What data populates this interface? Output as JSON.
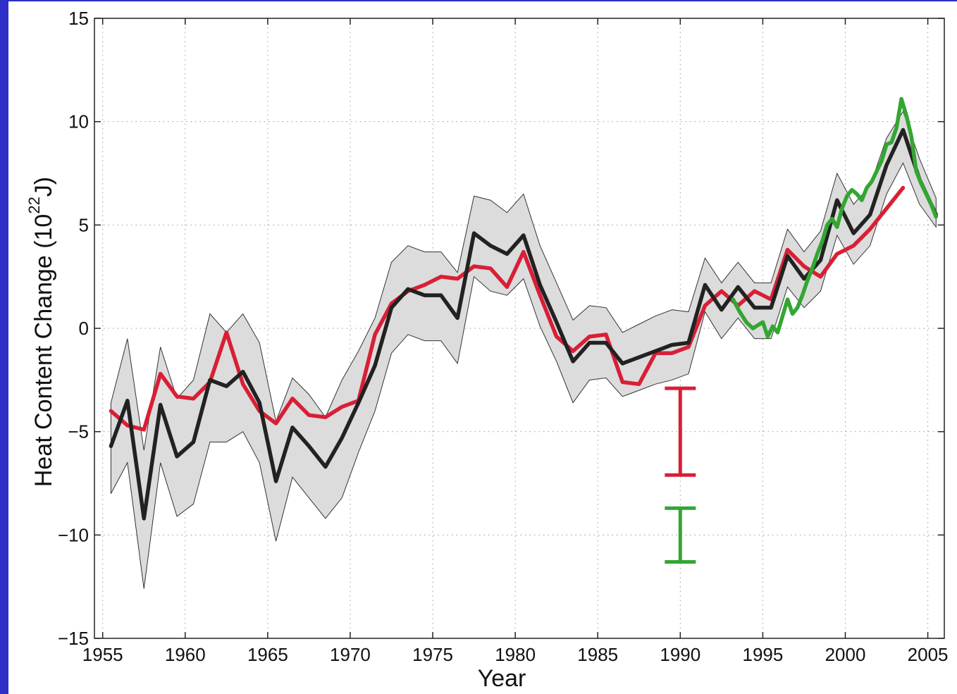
{
  "chart_data": {
    "type": "line",
    "title": "",
    "xlabel": "Year",
    "ylabel": "Heat Content Change (10",
    "ylabel_exponent": "22",
    "ylabel_unit": "J)",
    "xlim": [
      1954.5,
      2006
    ],
    "ylim": [
      -15,
      15
    ],
    "grid": true,
    "x_ticks": [
      1955,
      1960,
      1965,
      1970,
      1975,
      1980,
      1985,
      1990,
      1995,
      2000,
      2005
    ],
    "y_ticks": [
      -15,
      -10,
      -5,
      0,
      5,
      10,
      15
    ],
    "series": [
      {
        "color": "#222222",
        "x": [
          1955.5,
          1956.5,
          1957.5,
          1958.5,
          1959.5,
          1960.5,
          1961.5,
          1962.5,
          1963.5,
          1964.5,
          1965.5,
          1966.5,
          1967.5,
          1968.5,
          1969.5,
          1970.5,
          1971.5,
          1972.5,
          1973.5,
          1974.5,
          1975.5,
          1976.5,
          1977.5,
          1978.5,
          1979.5,
          1980.5,
          1981.5,
          1982.5,
          1983.5,
          1984.5,
          1985.5,
          1986.5,
          1987.5,
          1988.5,
          1989.5,
          1990.5,
          1991.5,
          1992.5,
          1993.5,
          1994.5,
          1995.5,
          1996.5,
          1997.5,
          1998.5,
          1999.5,
          2000.5,
          2001.5,
          2002.5,
          2003.5,
          2004.5,
          2005.5
        ],
        "y": [
          -5.7,
          -3.5,
          -9.2,
          -3.7,
          -6.2,
          -5.5,
          -2.5,
          -2.8,
          -2.1,
          -3.6,
          -7.4,
          -4.8,
          -5.7,
          -6.7,
          -5.3,
          -3.6,
          -1.8,
          1.0,
          1.9,
          1.6,
          1.6,
          0.5,
          4.6,
          4.0,
          3.6,
          4.5,
          2.1,
          0.3,
          -1.6,
          -0.7,
          -0.7,
          -1.7,
          -1.4,
          -1.1,
          -0.8,
          -0.7,
          2.1,
          0.9,
          2.0,
          1.0,
          1.0,
          3.5,
          2.4,
          3.3,
          6.2,
          4.6,
          5.5,
          7.9,
          9.6,
          7.2,
          5.5
        ],
        "lower": [
          -8.0,
          -6.5,
          -12.6,
          -6.5,
          -9.1,
          -8.5,
          -5.5,
          -5.5,
          -5.0,
          -6.5,
          -10.3,
          -7.2,
          -8.2,
          -9.2,
          -8.2,
          -6.0,
          -4.0,
          -1.2,
          -0.3,
          -0.6,
          -0.6,
          -1.7,
          2.5,
          1.8,
          1.6,
          2.4,
          0.1,
          -1.6,
          -3.6,
          -2.5,
          -2.4,
          -3.3,
          -3.0,
          -2.7,
          -2.5,
          -2.2,
          0.8,
          -0.5,
          0.5,
          -0.5,
          -0.5,
          2.0,
          1.0,
          1.8,
          4.5,
          3.1,
          4.0,
          6.5,
          8.0,
          6.0,
          4.9
        ],
        "upper": [
          -3.6,
          -0.5,
          -5.9,
          -0.9,
          -3.4,
          -2.5,
          0.7,
          -0.2,
          0.7,
          -0.7,
          -4.5,
          -2.4,
          -3.2,
          -4.3,
          -2.5,
          -1.1,
          0.5,
          3.2,
          4.0,
          3.7,
          3.7,
          2.7,
          6.4,
          6.2,
          5.6,
          6.5,
          4.0,
          2.2,
          0.4,
          1.1,
          1.0,
          -0.2,
          0.2,
          0.6,
          0.9,
          0.8,
          3.4,
          2.2,
          3.2,
          2.2,
          2.2,
          4.8,
          3.7,
          4.7,
          7.5,
          6.0,
          6.9,
          9.2,
          10.5,
          8.2,
          6.3
        ],
        "band": true
      },
      {
        "color": "#d81f36",
        "x": [
          1955.5,
          1956.5,
          1957.5,
          1958.5,
          1959.5,
          1960.5,
          1961.5,
          1962.5,
          1963.5,
          1964.5,
          1965.5,
          1966.5,
          1967.5,
          1968.5,
          1969.5,
          1970.5,
          1971.5,
          1972.5,
          1973.5,
          1974.5,
          1975.5,
          1976.5,
          1977.5,
          1978.5,
          1979.5,
          1980.5,
          1981.5,
          1982.5,
          1983.5,
          1984.5,
          1985.5,
          1986.5,
          1987.5,
          1988.5,
          1989.5,
          1990.5,
          1991.5,
          1992.5,
          1993.5,
          1994.5,
          1995.5,
          1996.5,
          1997.5,
          1998.5,
          1999.5,
          2000.5,
          2001.5,
          2002.5,
          2003.5
        ],
        "y": [
          -4.0,
          -4.7,
          -4.9,
          -2.2,
          -3.3,
          -3.4,
          -2.6,
          -0.2,
          -2.7,
          -4.0,
          -4.6,
          -3.4,
          -4.2,
          -4.3,
          -3.8,
          -3.5,
          -0.3,
          1.2,
          1.8,
          2.1,
          2.5,
          2.4,
          3.0,
          2.9,
          2.0,
          3.7,
          1.6,
          -0.4,
          -1.1,
          -0.4,
          -0.3,
          -2.6,
          -2.7,
          -1.2,
          -1.2,
          -0.9,
          1.1,
          1.8,
          1.1,
          1.8,
          1.4,
          3.8,
          3.0,
          2.5,
          3.6,
          4.0,
          4.8,
          5.8,
          6.8
        ]
      },
      {
        "color": "#33a632",
        "x": [
          1993.2,
          1993.6,
          1994.0,
          1994.4,
          1994.8,
          1995.0,
          1995.3,
          1995.6,
          1995.9,
          1996.2,
          1996.5,
          1996.8,
          1997.1,
          1997.4,
          1997.7,
          1998.0,
          1998.3,
          1998.6,
          1998.9,
          1999.2,
          1999.5,
          1999.8,
          2000.1,
          2000.4,
          2000.7,
          2001.0,
          2001.3,
          2001.6,
          2001.9,
          2002.2,
          2002.5,
          2002.8,
          2003.1,
          2003.4,
          2003.7,
          2004.0,
          2004.3,
          2004.6,
          2004.9,
          2005.2,
          2005.5
        ],
        "y": [
          1.4,
          0.8,
          0.3,
          0.0,
          0.2,
          0.3,
          -0.4,
          0.1,
          -0.2,
          0.6,
          1.4,
          0.7,
          1.0,
          1.6,
          2.3,
          2.9,
          3.6,
          4.2,
          5.0,
          5.3,
          4.9,
          5.8,
          6.4,
          6.7,
          6.5,
          6.2,
          6.8,
          7.1,
          7.6,
          8.1,
          8.9,
          9.0,
          9.7,
          11.1,
          10.3,
          9.3,
          7.6,
          7.0,
          6.5,
          6.0,
          5.4
        ]
      }
    ],
    "error_bars": [
      {
        "color": "#d81f36",
        "x": 1990,
        "low": -7.1,
        "high": -2.9
      },
      {
        "color": "#33a632",
        "x": 1990,
        "low": -11.3,
        "high": -8.7
      }
    ]
  }
}
